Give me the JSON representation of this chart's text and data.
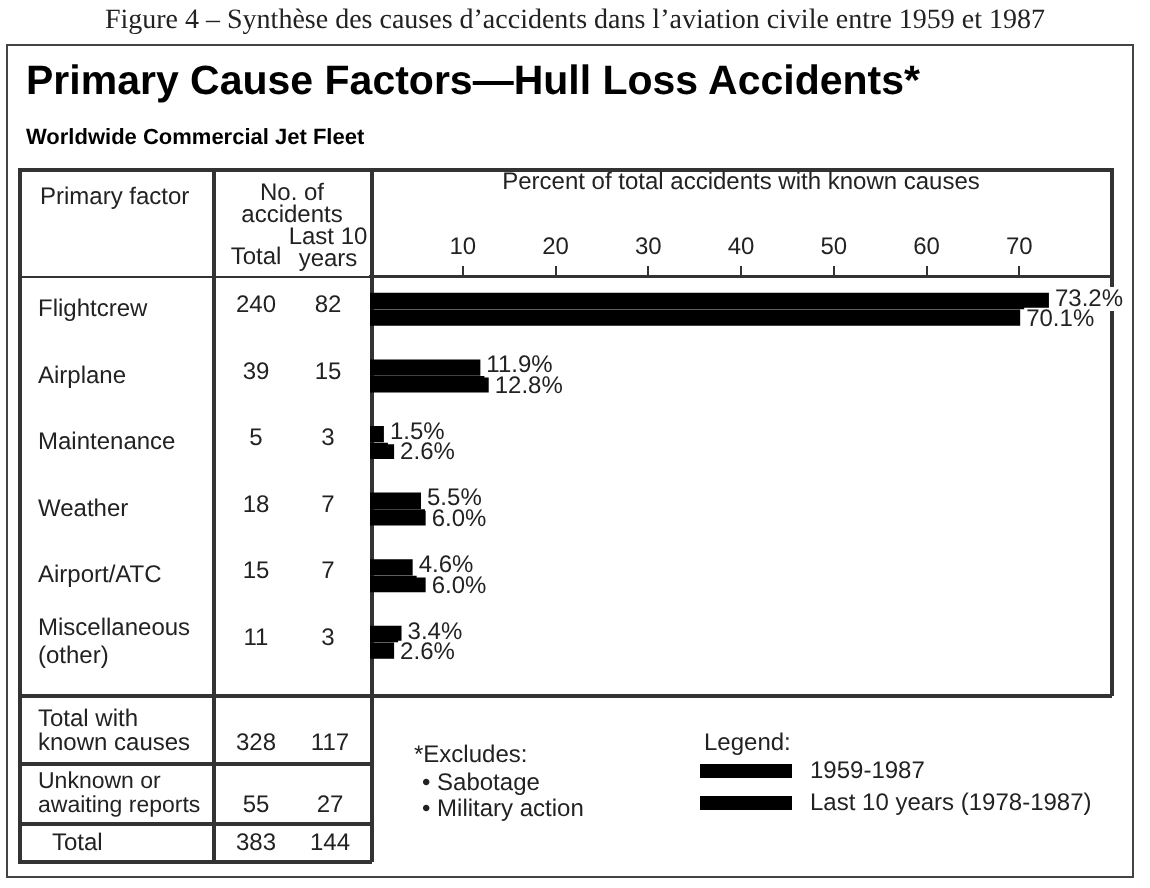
{
  "chart_data": {
    "type": "bar",
    "orientation": "horizontal",
    "title": "Primary Cause Factors—Hull Loss Accidents*",
    "subtitle": "Worldwide Commercial Jet Fleet",
    "xlabel": "Percent of total accidents with known causes",
    "ylabel": "Primary factor",
    "legend_title": "Legend:",
    "legend": "bottom right",
    "categories": [
      "Flightcrew",
      "Airplane",
      "Maintenance",
      "Weather",
      "Airport/ATC",
      "Miscellaneous (other)"
    ],
    "series": [
      {
        "name": "1959-1987",
        "color": "#000000",
        "values": [
          73.2,
          11.9,
          1.5,
          5.5,
          4.6,
          3.4
        ],
        "value_labels": [
          "73.2%",
          "11.9%",
          "1.5%",
          "5.5%",
          "4.6%",
          "3.4%"
        ]
      },
      {
        "name": "Last 10 years (1978-1987)",
        "color": "#000000",
        "values": [
          70.1,
          12.8,
          2.6,
          6.0,
          6.0,
          2.6
        ],
        "value_labels": [
          "70.1%",
          "12.8%",
          "2.6%",
          "6.0%",
          "6.0%",
          "2.6%"
        ]
      }
    ],
    "xlim": [
      0,
      80
    ],
    "xticks": [
      10,
      20,
      30,
      40,
      50,
      60,
      70
    ],
    "annotations": [
      "Figure 4 – Synthèse des causes d’accidents dans l’aviation civile entre 1959 et 1987",
      "No. of accidents",
      "Total",
      "Last 10 years",
      "240",
      "82",
      "39",
      "15",
      "5",
      "3",
      "18",
      "7",
      "15",
      "7",
      "11",
      "3",
      "Total with known causes",
      "328",
      "117",
      "Unknown or awaiting reports",
      "55",
      "27",
      "Total",
      "383",
      "144",
      "*Excludes:",
      "• Sabotage",
      "• Military action"
    ]
  }
}
